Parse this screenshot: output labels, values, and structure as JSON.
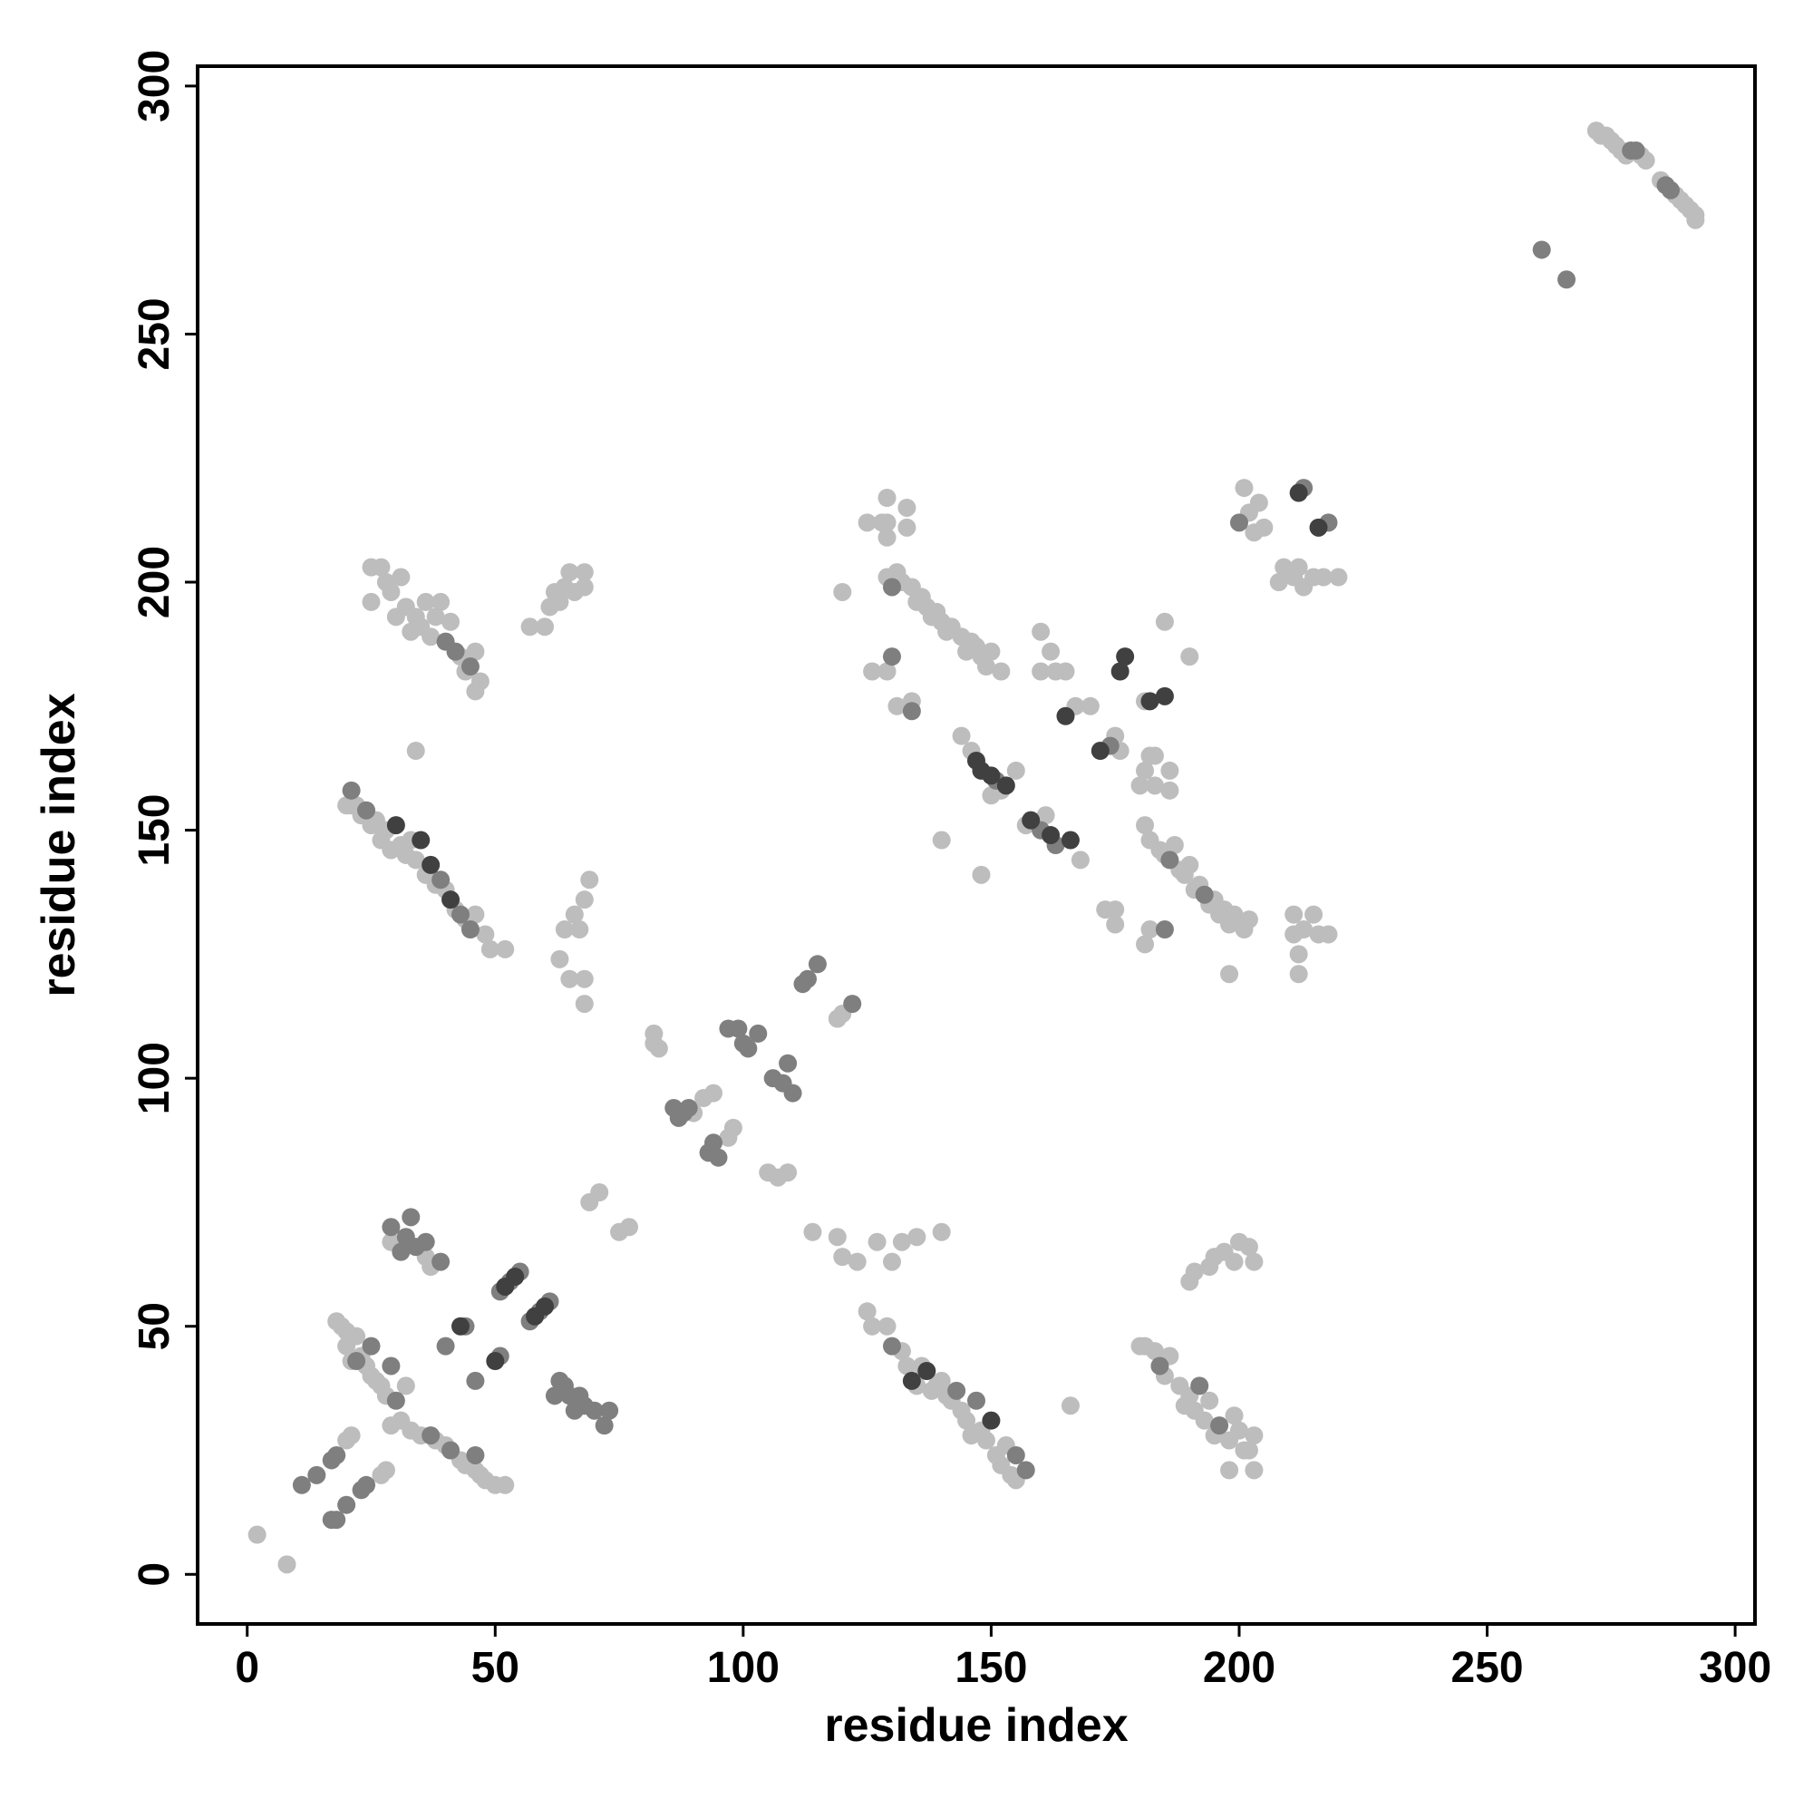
{
  "chart_data": {
    "type": "scatter",
    "xlabel": "residue index",
    "ylabel": "residue index",
    "xlim": [
      -10,
      304
    ],
    "ylim": [
      -10,
      304
    ],
    "xticks": [
      0,
      50,
      100,
      150,
      200,
      250,
      300
    ],
    "yticks": [
      0,
      50,
      100,
      150,
      200,
      250,
      300
    ],
    "series": [
      {
        "color": "#bdbdbd",
        "x": [
          2,
          8,
          20,
          21,
          27,
          28,
          18,
          19,
          20,
          21,
          22,
          20,
          23,
          21,
          24,
          25,
          26,
          27,
          28,
          32,
          29,
          31,
          33,
          35,
          38,
          40,
          43,
          44,
          46,
          47,
          48,
          50,
          52,
          29,
          36,
          37,
          69,
          71,
          75,
          77,
          82,
          82,
          83,
          90,
          92,
          94,
          97,
          98,
          105,
          107,
          109,
          119,
          120,
          21,
          25,
          27,
          25,
          28,
          29,
          30,
          31,
          32,
          33,
          34,
          35,
          36,
          37,
          38,
          39,
          41,
          43,
          44,
          46,
          46,
          47,
          57,
          60,
          61,
          62,
          63,
          64,
          65,
          66,
          68,
          68,
          34,
          20,
          22,
          23,
          25,
          26,
          27,
          28,
          29,
          31,
          32,
          33,
          34,
          36,
          38,
          40,
          42,
          44,
          46,
          48,
          49,
          52,
          63,
          64,
          65,
          66,
          67,
          68,
          68,
          69,
          68,
          129,
          131,
          132,
          134,
          135,
          136,
          137,
          138,
          139,
          140,
          141,
          142,
          144,
          145,
          146,
          147,
          148,
          149,
          150,
          152,
          125,
          128,
          129,
          129,
          129,
          133,
          133,
          120,
          126,
          129,
          131,
          134,
          144,
          146,
          152,
          155,
          150,
          140,
          148,
          157,
          161,
          168,
          160,
          160,
          162,
          163,
          165,
          167,
          170,
          175,
          176,
          183,
          185,
          190,
          181,
          173,
          175,
          175,
          181,
          182,
          183,
          180,
          186,
          186,
          181,
          182,
          184,
          185,
          187,
          188,
          189,
          190,
          191,
          192,
          194,
          195,
          196,
          197,
          198,
          199,
          201,
          202,
          198,
          181,
          182,
          211,
          213,
          215,
          216,
          212,
          212,
          218,
          211,
          201,
          202,
          203,
          204,
          205,
          208,
          209,
          211,
          212,
          213,
          215,
          217,
          220,
          125,
          126,
          129,
          132,
          133,
          135,
          136,
          138,
          139,
          140,
          141,
          142,
          144,
          145,
          146,
          148,
          149,
          151,
          152,
          153,
          154,
          155,
          114,
          119,
          120,
          123,
          127,
          130,
          132,
          135,
          140,
          166,
          180,
          181,
          183,
          185,
          186,
          188,
          190,
          191,
          193,
          194,
          195,
          198,
          199,
          200,
          201,
          202,
          203,
          198,
          203,
          189,
          190,
          191,
          194,
          195,
          197,
          199,
          200,
          202,
          203,
          272,
          273,
          274,
          275,
          276,
          277,
          278,
          281,
          282,
          285,
          288,
          289,
          290,
          291,
          292,
          292
        ],
        "y": [
          8,
          2,
          27,
          28,
          20,
          21,
          51,
          50,
          49,
          48,
          48,
          46,
          44,
          43,
          42,
          40,
          39,
          38,
          36,
          38,
          30,
          31,
          29,
          28,
          27,
          26,
          23,
          22,
          21,
          20,
          19,
          18,
          18,
          67,
          64,
          62,
          75,
          77,
          69,
          70,
          107,
          109,
          106,
          93,
          96,
          97,
          88,
          90,
          81,
          80,
          81,
          112,
          113,
          155,
          203,
          203,
          196,
          200,
          198,
          193,
          201,
          195,
          190,
          193,
          191,
          196,
          189,
          193,
          196,
          192,
          185,
          182,
          186,
          178,
          180,
          191,
          191,
          195,
          198,
          196,
          199,
          202,
          198,
          202,
          199,
          166,
          155,
          155,
          153,
          151,
          152,
          148,
          150,
          146,
          147,
          145,
          148,
          144,
          141,
          139,
          138,
          134,
          132,
          133,
          129,
          126,
          126,
          124,
          130,
          120,
          133,
          130,
          136,
          120,
          140,
          115,
          201,
          202,
          200,
          199,
          196,
          197,
          195,
          193,
          194,
          192,
          190,
          191,
          189,
          186,
          188,
          187,
          185,
          183,
          186,
          182,
          212,
          212,
          217,
          212,
          209,
          215,
          211,
          198,
          182,
          182,
          175,
          176,
          169,
          166,
          158,
          162,
          157,
          148,
          141,
          151,
          153,
          144,
          190,
          182,
          186,
          182,
          182,
          175,
          175,
          169,
          166,
          165,
          192,
          185,
          176,
          134,
          134,
          131,
          162,
          165,
          159,
          159,
          162,
          158,
          151,
          148,
          146,
          145,
          147,
          142,
          141,
          143,
          138,
          139,
          135,
          136,
          133,
          134,
          131,
          133,
          130,
          132,
          121,
          127,
          130,
          129,
          130,
          133,
          129,
          125,
          121,
          129,
          133,
          219,
          214,
          210,
          216,
          211,
          200,
          203,
          201,
          203,
          199,
          201,
          201,
          201,
          53,
          50,
          50,
          45,
          42,
          38,
          42,
          37,
          38,
          39,
          36,
          35,
          33,
          31,
          28,
          29,
          27,
          24,
          22,
          26,
          20,
          19,
          69,
          68,
          64,
          63,
          67,
          63,
          67,
          68,
          69,
          34,
          46,
          46,
          45,
          40,
          44,
          38,
          36,
          33,
          31,
          35,
          28,
          27,
          32,
          29,
          25,
          25,
          28,
          21,
          21,
          34,
          59,
          61,
          62,
          64,
          65,
          63,
          67,
          66,
          63,
          291,
          290,
          290,
          289,
          288,
          287,
          286,
          286,
          285,
          281,
          278,
          277,
          276,
          275,
          274,
          273
        ]
      },
      {
        "color": "#7f7f7f",
        "x": [
          11,
          14,
          17,
          18,
          17,
          18,
          20,
          23,
          24,
          22,
          25,
          29,
          30,
          37,
          41,
          46,
          29,
          31,
          33,
          32,
          34,
          36,
          39,
          40,
          44,
          46,
          51,
          51,
          53,
          55,
          57,
          59,
          61,
          62,
          63,
          64,
          65,
          66,
          67,
          68,
          70,
          72,
          73,
          86,
          87,
          88,
          89,
          93,
          95,
          94,
          97,
          99,
          100,
          101,
          103,
          106,
          108,
          110,
          109,
          112,
          113,
          115,
          122,
          21,
          24,
          39,
          43,
          40,
          42,
          45,
          130,
          130,
          134,
          186,
          193,
          185,
          200,
          213,
          218,
          130,
          143,
          147,
          155,
          157,
          184,
          192,
          196,
          279,
          280,
          286,
          287,
          261,
          266,
          151,
          160,
          163,
          174,
          45
        ],
        "y": [
          18,
          20,
          23,
          24,
          11,
          11,
          14,
          17,
          18,
          43,
          46,
          42,
          35,
          28,
          25,
          24,
          70,
          65,
          72,
          68,
          66,
          67,
          63,
          46,
          50,
          39,
          44,
          57,
          59,
          61,
          51,
          53,
          55,
          36,
          39,
          38,
          36,
          33,
          36,
          34,
          33,
          30,
          33,
          94,
          92,
          93,
          94,
          85,
          84,
          87,
          110,
          110,
          107,
          106,
          109,
          100,
          99,
          97,
          103,
          119,
          120,
          123,
          115,
          158,
          154,
          140,
          133,
          188,
          186,
          183,
          199,
          185,
          174,
          144,
          137,
          130,
          212,
          219,
          212,
          46,
          37,
          35,
          24,
          21,
          42,
          38,
          30,
          287,
          287,
          280,
          279,
          267,
          261,
          160,
          150,
          147,
          167,
          130
        ]
      },
      {
        "color": "#404040",
        "x": [
          43,
          50,
          52,
          54,
          58,
          60,
          30,
          35,
          37,
          41,
          147,
          148,
          150,
          153,
          158,
          162,
          166,
          165,
          172,
          176,
          177,
          182,
          185,
          212,
          216,
          134,
          137,
          150
        ],
        "y": [
          50,
          43,
          58,
          60,
          52,
          54,
          151,
          148,
          143,
          136,
          164,
          162,
          161,
          159,
          152,
          149,
          148,
          173,
          166,
          182,
          185,
          176,
          177,
          218,
          211,
          39,
          41,
          31
        ]
      }
    ]
  }
}
